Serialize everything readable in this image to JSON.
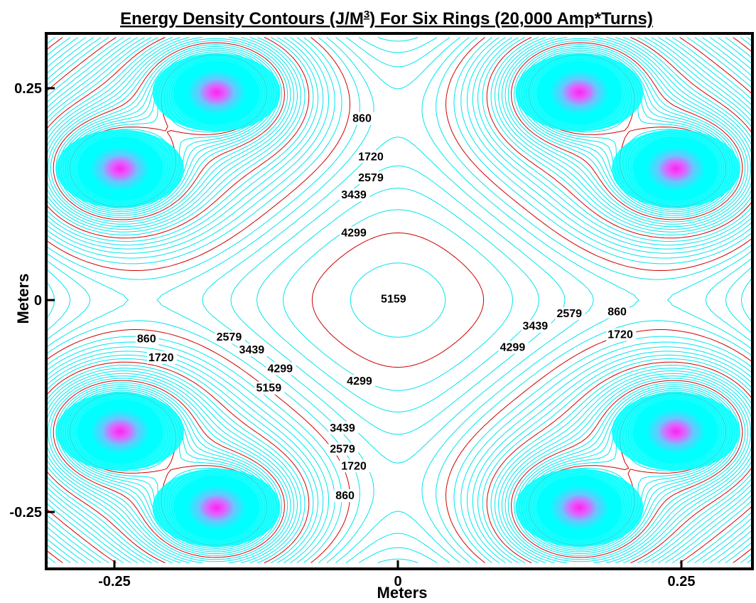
{
  "chart_data": {
    "type": "contour",
    "title": "Energy Density Contours (J/M",
    "title_sup": "3",
    "title_rest": ") For Six Rings (20,000 Amp*Turns)",
    "xlabel": "Meters",
    "ylabel": "Meters",
    "xlim": [
      -0.325,
      0.325
    ],
    "ylim": [
      -0.31,
      0.31
    ],
    "x_ticks": [
      -0.25,
      0,
      0.25
    ],
    "x_tick_labels": [
      "-0.25",
      "0",
      "0.25"
    ],
    "y_ticks": [
      0.25,
      0,
      -0.25
    ],
    "y_tick_labels": [
      "0.25",
      "0",
      "-0.25"
    ],
    "contour_levels": [
      860,
      1720,
      2579,
      3439,
      4299,
      5159
    ],
    "rings": [
      {
        "x": -0.16,
        "y": 0.245
      },
      {
        "x": -0.245,
        "y": 0.155
      },
      {
        "x": 0.16,
        "y": 0.245
      },
      {
        "x": 0.245,
        "y": 0.155
      },
      {
        "x": -0.245,
        "y": -0.155
      },
      {
        "x": -0.16,
        "y": -0.245
      },
      {
        "x": 0.245,
        "y": -0.155
      },
      {
        "x": 0.16,
        "y": -0.245
      }
    ],
    "contour_labels": [
      {
        "text": "860",
        "x": -0.04,
        "y": 0.21
      },
      {
        "text": "1720",
        "x": -0.035,
        "y": 0.165
      },
      {
        "text": "2579",
        "x": -0.035,
        "y": 0.14
      },
      {
        "text": "3439",
        "x": -0.05,
        "y": 0.12
      },
      {
        "text": "4299",
        "x": -0.05,
        "y": 0.075
      },
      {
        "text": "5159",
        "x": -0.015,
        "y": -0.003
      },
      {
        "text": "860",
        "x": 0.185,
        "y": -0.018
      },
      {
        "text": "1720",
        "x": 0.185,
        "y": -0.045
      },
      {
        "text": "2579",
        "x": 0.14,
        "y": -0.02
      },
      {
        "text": "3439",
        "x": 0.11,
        "y": -0.035
      },
      {
        "text": "4299",
        "x": 0.09,
        "y": -0.06
      },
      {
        "text": "860",
        "x": -0.23,
        "y": -0.05
      },
      {
        "text": "1720",
        "x": -0.22,
        "y": -0.072
      },
      {
        "text": "2579",
        "x": -0.16,
        "y": -0.048
      },
      {
        "text": "3439",
        "x": -0.14,
        "y": -0.063
      },
      {
        "text": "4299",
        "x": -0.115,
        "y": -0.085
      },
      {
        "text": "5159",
        "x": -0.125,
        "y": -0.108
      },
      {
        "text": "4299",
        "x": -0.045,
        "y": -0.1
      },
      {
        "text": "3439",
        "x": -0.06,
        "y": -0.155
      },
      {
        "text": "2579",
        "x": -0.06,
        "y": -0.18
      },
      {
        "text": "1720",
        "x": -0.05,
        "y": -0.2
      },
      {
        "text": "860",
        "x": -0.055,
        "y": -0.235
      }
    ],
    "colors": {
      "contour": "#00e5ee",
      "highlight_contour": "#cc0000",
      "core": "#ff44ee",
      "halo": "#00ffff"
    }
  }
}
